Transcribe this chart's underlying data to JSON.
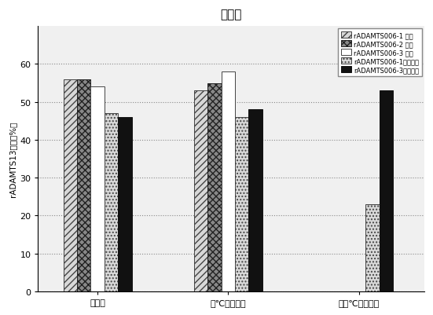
{
  "title": "図１０",
  "ylabel": "rADAMTS13純度（%）",
  "groups": [
    "開始時",
    "４℃で６ヶ月",
    "３７℃で６ヶ月"
  ],
  "series": [
    {
      "label": "rADAMTS006-1 液体",
      "values": [
        56,
        53,
        null
      ],
      "hatch": "////",
      "facecolor": "#d8d8d8",
      "edgecolor": "#444444"
    },
    {
      "label": "rADAMTS006-2 液体",
      "values": [
        56,
        55,
        null
      ],
      "hatch": "xxxx",
      "facecolor": "#888888",
      "edgecolor": "#222222"
    },
    {
      "label": "rADAMTS006-3 液体",
      "values": [
        54,
        58,
        null
      ],
      "hatch": "",
      "facecolor": "#ffffff",
      "edgecolor": "#444444"
    },
    {
      "label": "rADAMTS006-1凍結乾燥",
      "values": [
        47,
        46,
        23
      ],
      "hatch": "....",
      "facecolor": "#d8d8d8",
      "edgecolor": "#444444"
    },
    {
      "label": "rADAMTS006-3凍結乾燥",
      "values": [
        46,
        48,
        53
      ],
      "hatch": "",
      "facecolor": "#111111",
      "edgecolor": "#111111"
    }
  ],
  "ylim": [
    0,
    70
  ],
  "yticks": [
    0,
    10,
    20,
    30,
    40,
    50,
    60
  ],
  "bar_width": 0.115,
  "group_centers": [
    1.0,
    2.1,
    3.2
  ],
  "background_color": "#f0f0f0"
}
